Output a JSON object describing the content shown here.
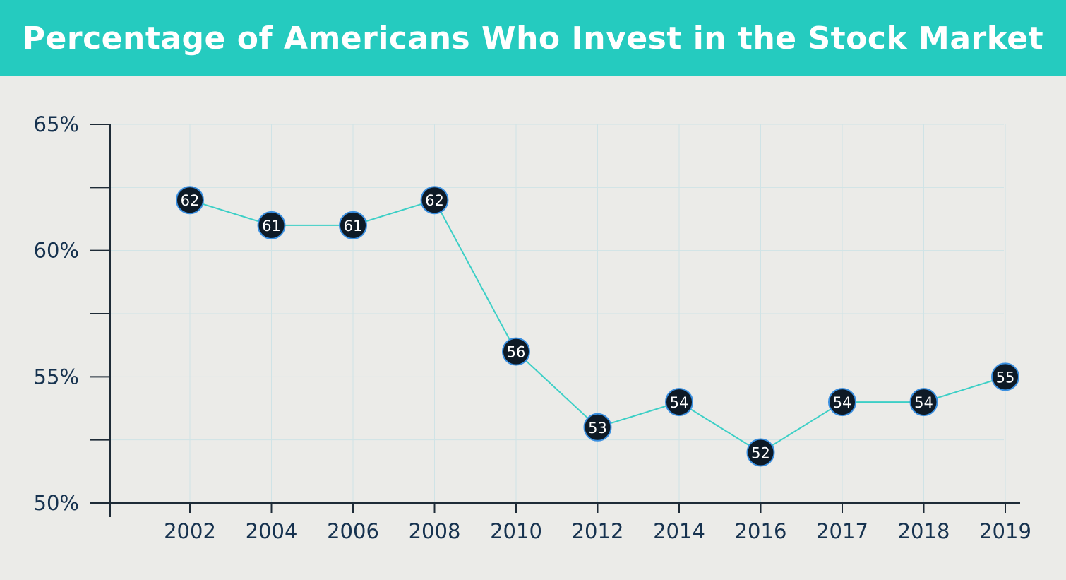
{
  "header": {
    "title": "Percentage of Americans Who Invest in the Stock Market",
    "background": "#25cbbf"
  },
  "colors": {
    "background": "#ebebe8",
    "line": "#3ccfc6",
    "marker_fill": "#0e1a26",
    "marker_stroke": "#3a8fe0",
    "axis": "#1e2b37",
    "tick_text": "#16324f",
    "grid": "#cfe3e6"
  },
  "chart_data": {
    "type": "line",
    "title": "Percentage of Americans Who Invest in the Stock Market",
    "categories": [
      "2002",
      "2004",
      "2006",
      "2008",
      "2010",
      "2012",
      "2014",
      "2016",
      "2017",
      "2018",
      "2019"
    ],
    "series": [
      {
        "values": [
          62,
          61,
          61,
          62,
          56,
          53,
          54,
          52,
          54,
          54,
          55
        ]
      }
    ],
    "point_labels": [
      "62",
      "61",
      "61",
      "62",
      "56",
      "53",
      "54",
      "52",
      "54",
      "54",
      "55"
    ],
    "y_ticks": [
      50,
      55,
      60,
      65
    ],
    "y_tick_labels": [
      "50%",
      "55%",
      "60%",
      "65%"
    ],
    "ylim": [
      50,
      65
    ],
    "grid": true,
    "legend": "none"
  }
}
